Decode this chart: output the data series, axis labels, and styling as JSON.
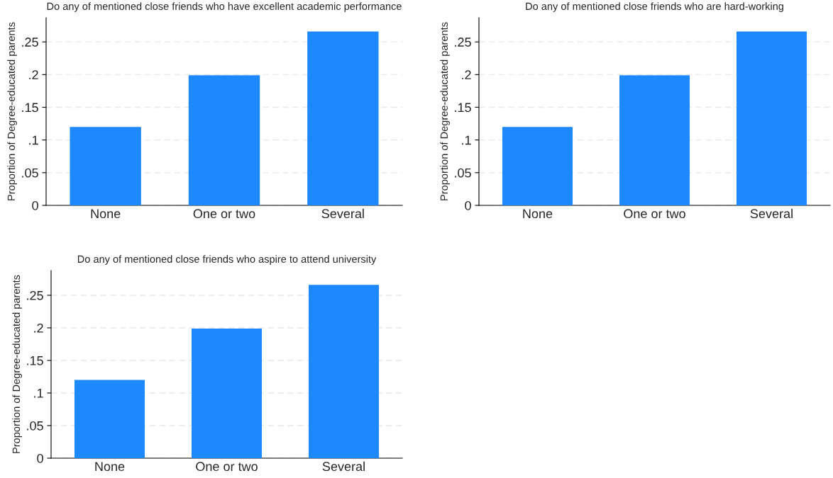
{
  "chart_data": [
    {
      "type": "bar",
      "title": "Do any of mentioned close friends who have excellent academic performance",
      "ylabel": "Proportion of Degree-educated parents",
      "categories": [
        "None",
        "One or two",
        "Several"
      ],
      "values": [
        0.12,
        0.199,
        0.266
      ],
      "color": "#1e88ff",
      "ylim": [
        0,
        0.287
      ],
      "yticks": [
        0,
        {
          "value": 0.05,
          "label": ".05"
        },
        {
          "value": 0.1,
          "label": ".1"
        },
        {
          "value": 0.15,
          "label": ".15"
        },
        {
          "value": 0.2,
          "label": ".2"
        },
        {
          "value": 0.25,
          "label": ".25"
        }
      ],
      "grid": "y"
    },
    {
      "type": "bar",
      "title": "Do any of mentioned close friends who are hard-working",
      "ylabel": "Proportion of Degree-educated parents",
      "categories": [
        "None",
        "One or two",
        "Several"
      ],
      "values": [
        0.12,
        0.199,
        0.266
      ],
      "color": "#1e88ff",
      "ylim": [
        0,
        0.287
      ],
      "yticks": [
        0,
        {
          "value": 0.05,
          "label": ".05"
        },
        {
          "value": 0.1,
          "label": ".1"
        },
        {
          "value": 0.15,
          "label": ".15"
        },
        {
          "value": 0.2,
          "label": ".2"
        },
        {
          "value": 0.25,
          "label": ".25"
        }
      ],
      "grid": "y"
    },
    {
      "type": "bar",
      "title": "Do any of mentioned close friends who aspire to attend university",
      "ylabel": "Proportion of Degree-educated parents",
      "categories": [
        "None",
        "One or two",
        "Several"
      ],
      "values": [
        0.12,
        0.199,
        0.266
      ],
      "color": "#1e88ff",
      "ylim": [
        0,
        0.288
      ],
      "yticks": [
        0,
        {
          "value": 0.05,
          "label": ".05"
        },
        {
          "value": 0.1,
          "label": ".1"
        },
        {
          "value": 0.15,
          "label": ".15"
        },
        {
          "value": 0.2,
          "label": ".2"
        },
        {
          "value": 0.25,
          "label": ".25"
        }
      ],
      "grid": "y"
    }
  ]
}
